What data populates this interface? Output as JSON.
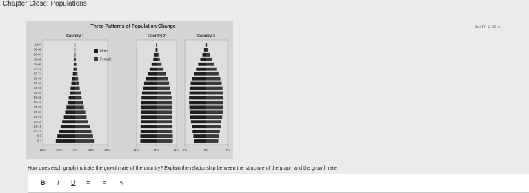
{
  "header": {
    "title": "Chapter Close: Populations",
    "timestamp": "Sep 17, 11:58 pm"
  },
  "figure": {
    "title": "Three Patterns of Population Change",
    "legend": [
      "Male",
      "Female"
    ],
    "age_groups": [
      "0-4",
      "5-9",
      "10-14",
      "15-19",
      "20-24",
      "25-29",
      "30-34",
      "35-39",
      "40-44",
      "45-49",
      "50-54",
      "55-59",
      "60-64",
      "65-69",
      "70-74",
      "75-79",
      "80-84",
      "85-89",
      "90-94",
      "95-99",
      "100+"
    ],
    "panels": [
      {
        "name": "Country 1",
        "xlim": [
          -20,
          20
        ],
        "xticks": [
          {
            "value": -20,
            "label": "20%"
          },
          {
            "value": -10,
            "label": "10%"
          },
          {
            "value": 0,
            "label": "0%"
          },
          {
            "value": 10,
            "label": "10%"
          },
          {
            "value": 20,
            "label": "20%"
          }
        ],
        "male": [
          12,
          11,
          10,
          9,
          8,
          7,
          6.2,
          5.4,
          4.7,
          4,
          3.4,
          2.8,
          2.3,
          1.8,
          1.4,
          1,
          0.7,
          0.4,
          0.2,
          0.1,
          0.1
        ],
        "female": [
          12,
          11,
          10,
          9,
          8,
          7,
          6.2,
          5.4,
          4.7,
          4,
          3.4,
          2.8,
          2.3,
          1.8,
          1.4,
          1,
          0.7,
          0.4,
          0.2,
          0.1,
          0.1
        ]
      },
      {
        "name": "Country 2",
        "xlim": [
          -8,
          8
        ],
        "xticks": [
          {
            "value": -8,
            "label": "8%"
          },
          {
            "value": 0,
            "label": "0%"
          },
          {
            "value": 8,
            "label": "8%"
          }
        ],
        "male": [
          6.5,
          6.5,
          6.4,
          6.4,
          6.3,
          6.3,
          6.2,
          6.2,
          6.1,
          6,
          5.8,
          5.5,
          5,
          4.4,
          3.6,
          2.8,
          2,
          1.3,
          0.8,
          0.4,
          0.2
        ],
        "female": [
          6.5,
          6.5,
          6.4,
          6.4,
          6.3,
          6.3,
          6.2,
          6.2,
          6.1,
          6,
          5.8,
          5.5,
          5,
          4.4,
          3.6,
          2.8,
          2,
          1.3,
          0.8,
          0.4,
          0.2
        ]
      },
      {
        "name": "Country 3",
        "xlim": [
          -8,
          8
        ],
        "xticks": [
          {
            "value": -8,
            "label": "8%"
          },
          {
            "value": 0,
            "label": "0%"
          },
          {
            "value": 8,
            "label": "8%"
          }
        ],
        "male": [
          4.5,
          4.8,
          5.1,
          5.4,
          5.7,
          6,
          6.2,
          6.3,
          6.4,
          6.4,
          6.3,
          6.1,
          5.8,
          5.3,
          4.6,
          3.8,
          3,
          2.2,
          1.4,
          0.8,
          0.3
        ],
        "female": [
          4.5,
          4.8,
          5.1,
          5.4,
          5.7,
          6,
          6.2,
          6.3,
          6.4,
          6.4,
          6.3,
          6.1,
          5.8,
          5.3,
          4.6,
          3.8,
          3,
          2.2,
          1.4,
          0.8,
          0.3
        ]
      }
    ]
  },
  "question": "How does each graph indicate the growth rate of the country? Explain the relationship between the structure of the graph and the growth rate."
}
